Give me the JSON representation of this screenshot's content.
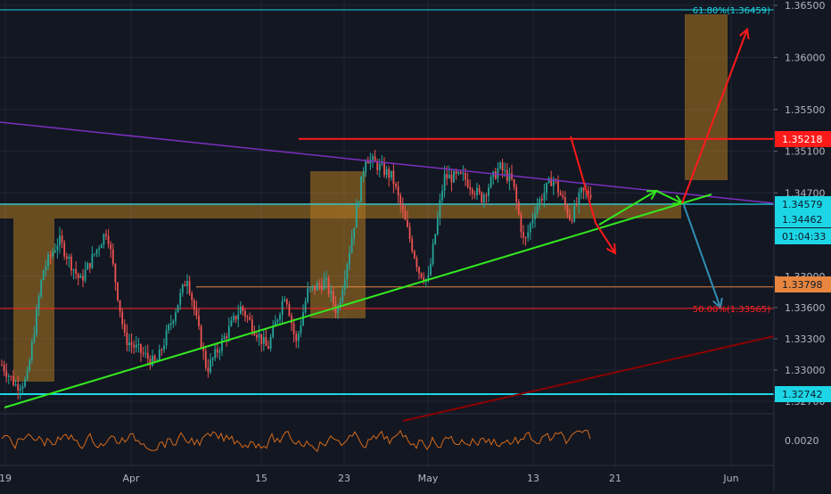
{
  "chart_data": {
    "type": "candlestick",
    "y_axis": {
      "side": "right",
      "ylim": [
        1.3262,
        1.3654
      ],
      "ticks": [
        "1.36500",
        "1.36000",
        "1.35500",
        "1.35100",
        "1.34700",
        "1.33900",
        "1.33600",
        "1.33300",
        "1.33000",
        "1.32700"
      ]
    },
    "x_axis": {
      "tick_labels": [
        "19",
        "Apr",
        "15",
        "23",
        "May",
        "13",
        "21",
        "Jun"
      ]
    },
    "price_markers": [
      {
        "label": "1.35218",
        "value": 1.35218,
        "color": "#ff1a1a",
        "text_color": "#ffffff"
      },
      {
        "label": "1.34579",
        "value": 1.34579,
        "color": "#1cd6e6",
        "text_color": "#0b1b2a"
      },
      {
        "label": "1.34462",
        "value": 1.34462,
        "color": "#1cd6e6",
        "text_color": "#0b1b2a"
      },
      {
        "label": "01:04:33",
        "value": 1.3427,
        "color": "#1cd6e6",
        "text_color": "#0b1b2a"
      },
      {
        "label": "1.33798",
        "value": 1.33798,
        "color": "#e8853f",
        "text_color": "#0b1b2a"
      },
      {
        "label": "1.32742",
        "value": 1.32742,
        "color": "#1cd6e6",
        "text_color": "#0b1b2a"
      }
    ],
    "fib_labels": [
      {
        "text": "61.80%(1.36459)",
        "value": 1.36459,
        "color": "#1cd6e6"
      },
      {
        "text": "50.00%(1.33565)",
        "value": 1.33565,
        "color": "#ff2020"
      }
    ],
    "oscillator": {
      "tick_label": "0.0020",
      "color": "#d66a1a"
    },
    "colors": {
      "background": "#131722",
      "grid": "#1f2636",
      "up": "#26a69a",
      "down": "#ef5350",
      "zone": "#b07a20",
      "trendline_green": "#33e81f",
      "trendline_purple": "#7b2fbf",
      "trendline_darkred": "#8b0000",
      "arrow_red": "#ff1a1a",
      "arrow_green": "#33e81f",
      "arrow_blue": "#2f8fb5"
    }
  }
}
